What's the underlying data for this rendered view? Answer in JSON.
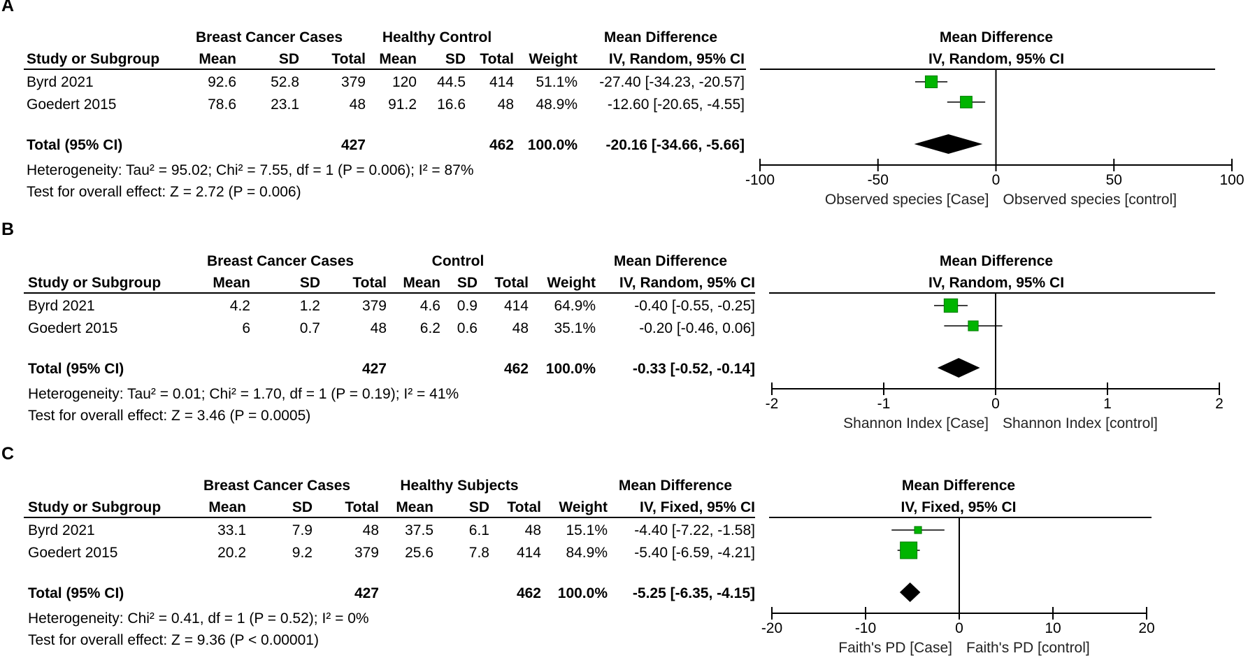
{
  "chart_data": [
    {
      "type": "forest",
      "panel": "A",
      "header": {
        "group1": "Breast Cancer Cases",
        "group2": "Healthy Control",
        "study": "Study or Subgroup",
        "mean": "Mean",
        "sd": "SD",
        "total": "Total",
        "weight": "Weight",
        "md_title": "Mean Difference",
        "md_method": "IV, Random, 95% CI"
      },
      "studies": [
        {
          "name": "Byrd 2021",
          "g1_mean": "92.6",
          "g1_sd": "52.8",
          "g1_total": "379",
          "g2_mean": "120",
          "g2_sd": "44.5",
          "g2_total": "414",
          "weight": "51.1%",
          "ci_text": "-27.40 [-34.23, -20.57]",
          "md": -27.4,
          "lo": -34.23,
          "hi": -20.57,
          "w": 51.1
        },
        {
          "name": "Goedert 2015",
          "g1_mean": "78.6",
          "g1_sd": "23.1",
          "g1_total": "48",
          "g2_mean": "91.2",
          "g2_sd": "16.6",
          "g2_total": "48",
          "weight": "48.9%",
          "ci_text": "-12.60 [-20.65, -4.55]",
          "md": -12.6,
          "lo": -20.65,
          "hi": -4.55,
          "w": 48.9
        }
      ],
      "total": {
        "label": "Total (95% CI)",
        "g1_total": "427",
        "g2_total": "462",
        "weight": "100.0%",
        "ci_text": "-20.16 [-34.66, -5.66]",
        "md": -20.16,
        "lo": -34.66,
        "hi": -5.66
      },
      "heterogeneity": "Heterogeneity: Tau² = 95.02; Chi² = 7.55, df = 1 (P = 0.006); I² = 87%",
      "overall_effect": "Test for overall effect: Z = 2.72 (P = 0.006)",
      "xlim": [
        -100,
        100
      ],
      "ticks": [
        -100,
        -50,
        0,
        50,
        100
      ],
      "tick_labels": [
        "-100",
        "-50",
        "0",
        "50",
        "100"
      ],
      "favours_left": "Observed species [Case]",
      "favours_right": "Observed species [control]"
    },
    {
      "type": "forest",
      "panel": "B",
      "header": {
        "group1": "Breast Cancer Cases",
        "group2": "Control",
        "study": "Study or Subgroup",
        "mean": "Mean",
        "sd": "SD",
        "total": "Total",
        "weight": "Weight",
        "md_title": "Mean Difference",
        "md_method": "IV, Random, 95% CI"
      },
      "studies": [
        {
          "name": "Byrd 2021",
          "g1_mean": "4.2",
          "g1_sd": "1.2",
          "g1_total": "379",
          "g2_mean": "4.6",
          "g2_sd": "0.9",
          "g2_total": "414",
          "weight": "64.9%",
          "ci_text": "-0.40 [-0.55, -0.25]",
          "md": -0.4,
          "lo": -0.55,
          "hi": -0.25,
          "w": 64.9
        },
        {
          "name": "Goedert 2015",
          "g1_mean": "6",
          "g1_sd": "0.7",
          "g1_total": "48",
          "g2_mean": "6.2",
          "g2_sd": "0.6",
          "g2_total": "48",
          "weight": "35.1%",
          "ci_text": "-0.20 [-0.46, 0.06]",
          "md": -0.2,
          "lo": -0.46,
          "hi": 0.06,
          "w": 35.1
        }
      ],
      "total": {
        "label": "Total (95% CI)",
        "g1_total": "427",
        "g2_total": "462",
        "weight": "100.0%",
        "ci_text": "-0.33 [-0.52, -0.14]",
        "md": -0.33,
        "lo": -0.52,
        "hi": -0.14
      },
      "heterogeneity": "Heterogeneity: Tau² = 0.01; Chi² = 1.70, df = 1 (P = 0.19); I² = 41%",
      "overall_effect": "Test for overall effect: Z = 3.46 (P = 0.0005)",
      "xlim": [
        -2,
        2
      ],
      "ticks": [
        -2,
        -1,
        0,
        1,
        2
      ],
      "tick_labels": [
        "-2",
        "-1",
        "0",
        "1",
        "2"
      ],
      "favours_left": "Shannon Index [Case]",
      "favours_right": "Shannon Index [control]"
    },
    {
      "type": "forest",
      "panel": "C",
      "header": {
        "group1": "Breast Cancer Cases",
        "group2": "Healthy Subjects",
        "study": "Study or Subgroup",
        "mean": "Mean",
        "sd": "SD",
        "total": "Total",
        "weight": "Weight",
        "md_title": "Mean Difference",
        "md_method": "IV, Fixed, 95% CI"
      },
      "studies": [
        {
          "name": "Byrd 2021",
          "g1_mean": "33.1",
          "g1_sd": "7.9",
          "g1_total": "48",
          "g2_mean": "37.5",
          "g2_sd": "6.1",
          "g2_total": "48",
          "weight": "15.1%",
          "ci_text": "-4.40 [-7.22, -1.58]",
          "md": -4.4,
          "lo": -7.22,
          "hi": -1.58,
          "w": 15.1
        },
        {
          "name": "Goedert 2015",
          "g1_mean": "20.2",
          "g1_sd": "9.2",
          "g1_total": "379",
          "g2_mean": "25.6",
          "g2_sd": "7.8",
          "g2_total": "414",
          "weight": "84.9%",
          "ci_text": "-5.40 [-6.59, -4.21]",
          "md": -5.4,
          "lo": -6.59,
          "hi": -4.21,
          "w": 84.9
        }
      ],
      "total": {
        "label": "Total (95% CI)",
        "g1_total": "427",
        "g2_total": "462",
        "weight": "100.0%",
        "ci_text": "-5.25 [-6.35, -4.15]",
        "md": -5.25,
        "lo": -6.35,
        "hi": -4.15
      },
      "heterogeneity": "Heterogeneity: Chi² = 0.41, df = 1 (P = 0.52); I² = 0%",
      "overall_effect": "Test for overall effect: Z = 9.36 (P < 0.00001)",
      "xlim": [
        -20,
        20
      ],
      "ticks": [
        -20,
        -10,
        0,
        10,
        20
      ],
      "tick_labels": [
        "-20",
        "-10",
        "0",
        "10",
        "20"
      ],
      "favours_left": "Faith's PD [Case]",
      "favours_right": "Faith's PD [control]"
    }
  ],
  "colors": {
    "marker": "#00b400",
    "marker_edge": "#007a00",
    "diamond": "#000000",
    "line": "#000000"
  }
}
